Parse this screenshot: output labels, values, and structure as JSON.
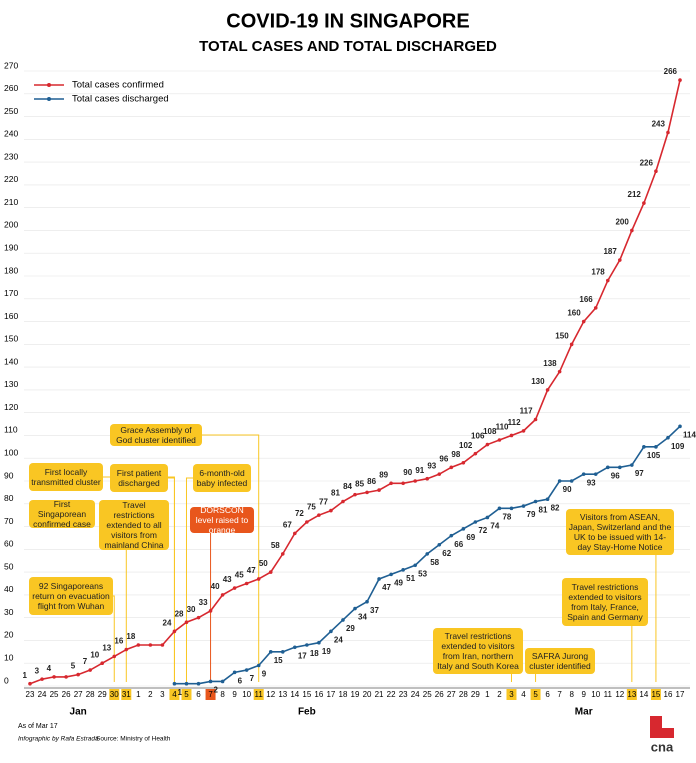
{
  "chart_data": {
    "type": "line",
    "title": "COVID-19 IN SINGAPORE",
    "subtitle": "TOTAL CASES AND TOTAL DISCHARGED",
    "categories": [
      "23",
      "24",
      "25",
      "26",
      "27",
      "28",
      "29",
      "30",
      "31",
      "1",
      "2",
      "3",
      "4",
      "5",
      "6",
      "7",
      "8",
      "9",
      "10",
      "11",
      "12",
      "13",
      "14",
      "15",
      "16",
      "17",
      "18",
      "19",
      "20",
      "21",
      "22",
      "23",
      "24",
      "25",
      "26",
      "27",
      "28",
      "29",
      "1",
      "2",
      "3",
      "4",
      "5",
      "6",
      "7",
      "8",
      "9",
      "10",
      "11",
      "12",
      "13",
      "14",
      "15",
      "16",
      "17"
    ],
    "months": [
      {
        "label": "Jan",
        "start": 0,
        "end": 8
      },
      {
        "label": "Feb",
        "start": 9,
        "end": 37
      },
      {
        "label": "Mar",
        "start": 38,
        "end": 54
      }
    ],
    "series": [
      {
        "name": "Total cases confirmed",
        "color": "#d7282f",
        "values": [
          1,
          3,
          4,
          4,
          5,
          7,
          10,
          13,
          16,
          18,
          18,
          18,
          24,
          28,
          30,
          33,
          40,
          43,
          45,
          47,
          50,
          58,
          67,
          72,
          75,
          77,
          81,
          84,
          85,
          86,
          89,
          89,
          90,
          91,
          93,
          96,
          98,
          102,
          106,
          108,
          110,
          112,
          117,
          130,
          138,
          150,
          160,
          166,
          178,
          187,
          200,
          212,
          226,
          243,
          266
        ]
      },
      {
        "name": "Total cases discharged",
        "color": "#1f5f93",
        "values": [
          null,
          null,
          null,
          null,
          null,
          null,
          null,
          null,
          null,
          null,
          null,
          null,
          1,
          1,
          1,
          2,
          2,
          6,
          7,
          9,
          15,
          15,
          17,
          18,
          19,
          24,
          29,
          34,
          37,
          47,
          49,
          51,
          53,
          58,
          62,
          66,
          69,
          72,
          74,
          78,
          78,
          79,
          81,
          82,
          90,
          90,
          93,
          93,
          96,
          96,
          97,
          105,
          105,
          109,
          114
        ]
      }
    ],
    "ylim": [
      0,
      270
    ],
    "yticks": [
      0,
      10,
      20,
      30,
      40,
      50,
      60,
      70,
      80,
      90,
      100,
      110,
      120,
      130,
      140,
      150,
      160,
      170,
      180,
      190,
      200,
      210,
      220,
      230,
      240,
      250,
      260,
      270
    ],
    "grid": true,
    "legend": "top-left",
    "annotations": [
      {
        "text": "92 Singaporeans return on evacuation flight from Wuhan",
        "at": 7,
        "color": "#f9c623"
      },
      {
        "text": "First Singaporean confirmed case",
        "color": "#f9c623"
      },
      {
        "text": "First locally transmitted cluster",
        "at": 12,
        "color": "#f9c623"
      },
      {
        "text": "Travel restrictions extended to all visitors from mainland China",
        "at": 8,
        "color": "#f9c623"
      },
      {
        "text": "First patient discharged",
        "at": 12,
        "color": "#f9c623"
      },
      {
        "text": "6-month-old baby infected",
        "at": 13,
        "color": "#f9c623"
      },
      {
        "text": "DORSCON level raised to orange",
        "at": 15,
        "color": "#e8561c"
      },
      {
        "text": "Grace Assembly of God cluster identified",
        "at": 19,
        "color": "#f9c623"
      },
      {
        "text": "Travel restrictions extended to visitors from Iran, northern Italy and South Korea",
        "at": 40,
        "color": "#f9c623"
      },
      {
        "text": "SAFRA Jurong cluster identified",
        "at": 42,
        "color": "#f9c623"
      },
      {
        "text": "Travel restrictions extended to visitors from Italy, France, Spain and Germany",
        "at": 50,
        "color": "#f9c623"
      },
      {
        "text": "Visitors from ASEAN, Japan, Switzerland and the UK to be issued with 14-day Stay-Home Notice",
        "at": 52,
        "color": "#f9c623"
      }
    ],
    "footer": {
      "asof": "As of Mar 17",
      "credit": "Infographic by Rafa Estrada",
      "source": "Source: Ministry of Health"
    },
    "logo": "cna"
  }
}
